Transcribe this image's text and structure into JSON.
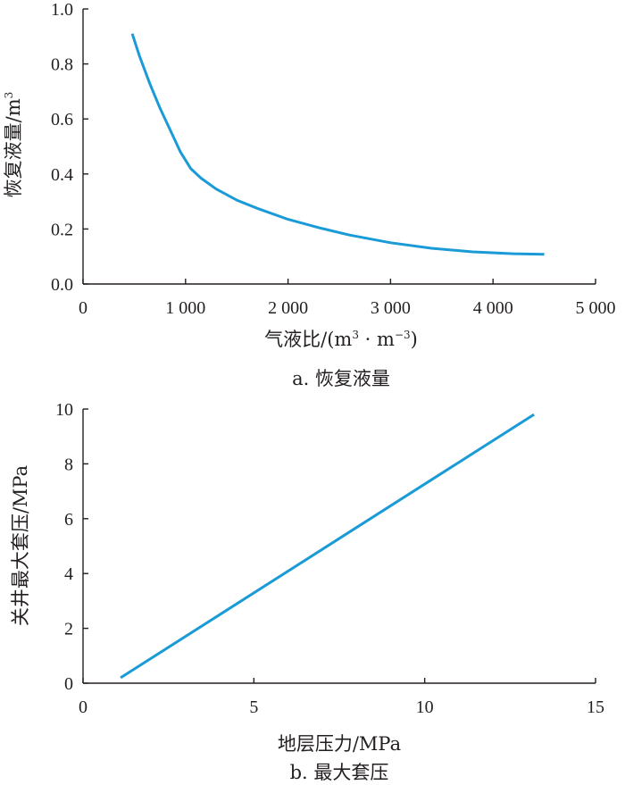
{
  "chart_data": [
    {
      "type": "line",
      "caption": "a. 恢复液量",
      "xlabel": "气液比/(m³·m⁻³)",
      "ylabel": "恢复液量/m³",
      "xlim": [
        0,
        5000
      ],
      "ylim": [
        0,
        1.0
      ],
      "xticks": [
        0,
        1000,
        2000,
        3000,
        4000,
        5000
      ],
      "xtick_labels": [
        "0",
        "1 000",
        "2 000",
        "3 000",
        "4 000",
        "5 000"
      ],
      "yticks": [
        0,
        0.2,
        0.4,
        0.6,
        0.8,
        1.0
      ],
      "ytick_labels": [
        "0.0",
        "0.2",
        "0.4",
        "0.6",
        "0.8",
        "1.0"
      ],
      "color": "#1a9bd7",
      "series": [
        {
          "x": [
            480,
            550,
            650,
            750,
            850,
            950,
            1050,
            1150,
            1300,
            1500,
            1700,
            2000,
            2300,
            2600,
            3000,
            3400,
            3800,
            4200,
            4500
          ],
          "y": [
            0.91,
            0.83,
            0.73,
            0.64,
            0.56,
            0.48,
            0.42,
            0.385,
            0.345,
            0.305,
            0.275,
            0.235,
            0.205,
            0.178,
            0.15,
            0.13,
            0.117,
            0.11,
            0.108
          ]
        }
      ]
    },
    {
      "type": "line",
      "caption": "b. 最大套压",
      "xlabel": "地层压力/MPa",
      "ylabel": "关井最大套压/MPa",
      "xlim": [
        0,
        15
      ],
      "ylim": [
        0,
        10
      ],
      "xticks": [
        0,
        5,
        10,
        15
      ],
      "xtick_labels": [
        "0",
        "5",
        "10",
        "15"
      ],
      "yticks": [
        0,
        2,
        4,
        6,
        8,
        10
      ],
      "ytick_labels": [
        "0",
        "2",
        "4",
        "6",
        "8",
        "10"
      ],
      "color": "#1a9bd7",
      "series": [
        {
          "x": [
            1.1,
            13.2
          ],
          "y": [
            0.2,
            9.8
          ]
        }
      ]
    }
  ]
}
